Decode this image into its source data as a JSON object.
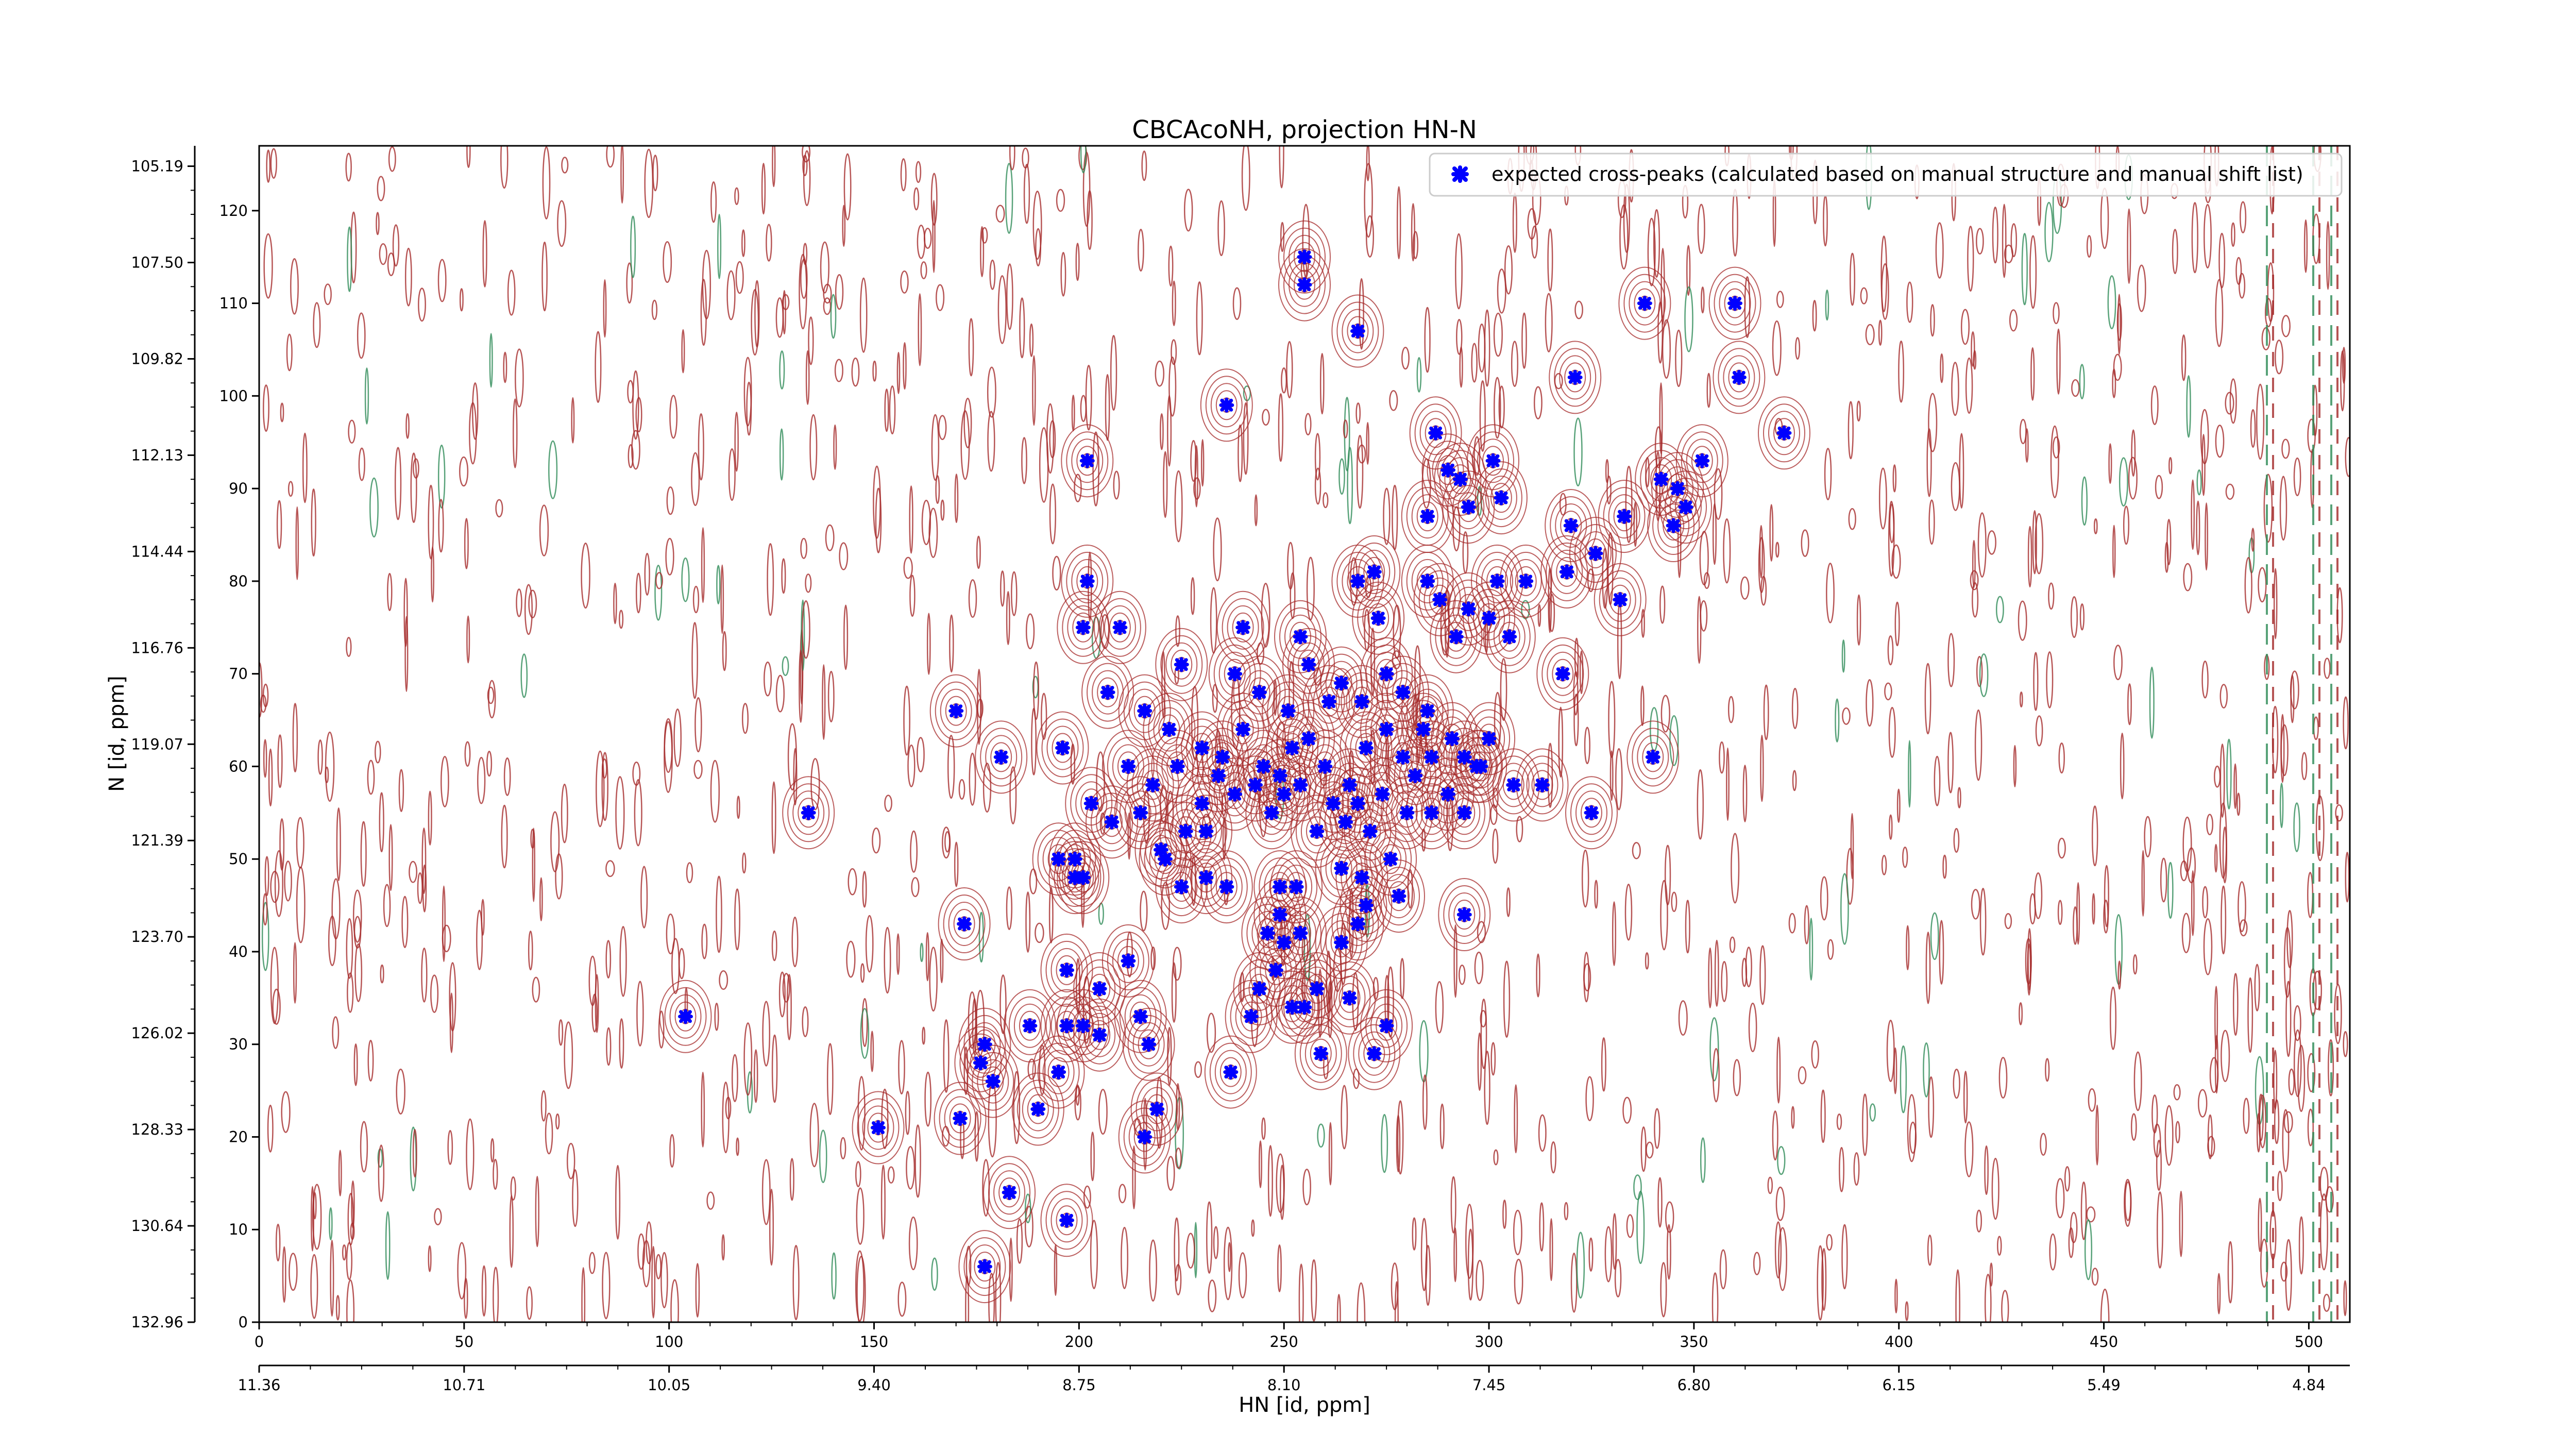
{
  "chart_data": {
    "type": "scatter",
    "title": "CBCAcoNH, projection HN-N",
    "xlabel": "HN [id, ppm]",
    "ylabel": "N [id, ppm]",
    "xlim": [
      0,
      510
    ],
    "ylim": [
      0,
      127
    ],
    "x_ticks": [
      0,
      50,
      100,
      150,
      200,
      250,
      300,
      350,
      400,
      450,
      500
    ],
    "y_ticks": [
      0,
      10,
      20,
      30,
      40,
      50,
      60,
      70,
      80,
      90,
      100,
      110,
      120
    ],
    "x_ppm_ticks": [
      {
        "pos": 0,
        "label": "11.36"
      },
      {
        "pos": 50,
        "label": "10.71"
      },
      {
        "pos": 100,
        "label": "10.05"
      },
      {
        "pos": 150,
        "label": "9.40"
      },
      {
        "pos": 200,
        "label": "8.75"
      },
      {
        "pos": 250,
        "label": "8.10"
      },
      {
        "pos": 300,
        "label": "7.45"
      },
      {
        "pos": 350,
        "label": "6.80"
      },
      {
        "pos": 400,
        "label": "6.15"
      },
      {
        "pos": 450,
        "label": "5.49"
      },
      {
        "pos": 500,
        "label": "4.84"
      }
    ],
    "y_ppm_ticks": [
      {
        "pos": 0,
        "label": "132.96"
      },
      {
        "pos": 10.4,
        "label": "130.64"
      },
      {
        "pos": 20.8,
        "label": "128.33"
      },
      {
        "pos": 31.2,
        "label": "126.02"
      },
      {
        "pos": 41.6,
        "label": "123.70"
      },
      {
        "pos": 52,
        "label": "121.39"
      },
      {
        "pos": 62.4,
        "label": "119.07"
      },
      {
        "pos": 72.8,
        "label": "116.76"
      },
      {
        "pos": 83.2,
        "label": "114.44"
      },
      {
        "pos": 93.6,
        "label": "112.13"
      },
      {
        "pos": 104,
        "label": "109.82"
      },
      {
        "pos": 114.4,
        "label": "107.50"
      },
      {
        "pos": 124.8,
        "label": "105.19"
      }
    ],
    "legend": {
      "position": "top-right"
    },
    "series": [
      {
        "name": "expected cross-peaks (calculated based on manual structure and manual shift list)",
        "color": "#0000ff",
        "marker": "x",
        "points": [
          [
            255,
            115
          ],
          [
            255,
            112
          ],
          [
            268,
            107
          ],
          [
            321,
            102
          ],
          [
            338,
            110
          ],
          [
            360,
            110
          ],
          [
            361,
            102
          ],
          [
            372,
            96
          ],
          [
            236,
            99
          ],
          [
            202,
            93
          ],
          [
            287,
            96
          ],
          [
            290,
            92
          ],
          [
            293,
            91
          ],
          [
            301,
            93
          ],
          [
            303,
            89
          ],
          [
            285,
            87
          ],
          [
            295,
            88
          ],
          [
            320,
            86
          ],
          [
            326,
            83
          ],
          [
            333,
            87
          ],
          [
            342,
            91
          ],
          [
            346,
            90
          ],
          [
            352,
            93
          ],
          [
            345,
            86
          ],
          [
            348,
            88
          ],
          [
            202,
            80
          ],
          [
            201,
            75
          ],
          [
            210,
            75
          ],
          [
            207,
            68
          ],
          [
            170,
            66
          ],
          [
            181,
            61
          ],
          [
            196,
            62
          ],
          [
            240,
            75
          ],
          [
            254,
            74
          ],
          [
            268,
            80
          ],
          [
            272,
            81
          ],
          [
            273,
            76
          ],
          [
            285,
            80
          ],
          [
            288,
            78
          ],
          [
            302,
            80
          ],
          [
            309,
            80
          ],
          [
            295,
            77
          ],
          [
            300,
            76
          ],
          [
            292,
            74
          ],
          [
            305,
            74
          ],
          [
            319,
            81
          ],
          [
            332,
            78
          ],
          [
            318,
            70
          ],
          [
            225,
            71
          ],
          [
            238,
            70
          ],
          [
            244,
            68
          ],
          [
            251,
            66
          ],
          [
            256,
            71
          ],
          [
            264,
            69
          ],
          [
            261,
            67
          ],
          [
            275,
            70
          ],
          [
            269,
            67
          ],
          [
            279,
            68
          ],
          [
            285,
            66
          ],
          [
            284,
            64
          ],
          [
            291,
            63
          ],
          [
            286,
            61
          ],
          [
            294,
            61
          ],
          [
            297,
            60
          ],
          [
            300,
            63
          ],
          [
            290,
            57
          ],
          [
            298,
            60
          ],
          [
            306,
            58
          ],
          [
            313,
            58
          ],
          [
            325,
            55
          ],
          [
            340,
            61
          ],
          [
            216,
            66
          ],
          [
            222,
            64
          ],
          [
            230,
            62
          ],
          [
            235,
            61
          ],
          [
            240,
            64
          ],
          [
            245,
            60
          ],
          [
            249,
            59
          ],
          [
            252,
            62
          ],
          [
            256,
            63
          ],
          [
            260,
            60
          ],
          [
            266,
            58
          ],
          [
            270,
            62
          ],
          [
            275,
            64
          ],
          [
            279,
            61
          ],
          [
            282,
            59
          ],
          [
            212,
            60
          ],
          [
            218,
            58
          ],
          [
            224,
            60
          ],
          [
            230,
            56
          ],
          [
            234,
            59
          ],
          [
            238,
            57
          ],
          [
            243,
            58
          ],
          [
            247,
            55
          ],
          [
            250,
            57
          ],
          [
            254,
            58
          ],
          [
            258,
            53
          ],
          [
            262,
            56
          ],
          [
            265,
            54
          ],
          [
            268,
            56
          ],
          [
            271,
            53
          ],
          [
            274,
            57
          ],
          [
            280,
            55
          ],
          [
            286,
            55
          ],
          [
            294,
            55
          ],
          [
            203,
            56
          ],
          [
            208,
            54
          ],
          [
            215,
            55
          ],
          [
            220,
            51
          ],
          [
            226,
            53
          ],
          [
            231,
            53
          ],
          [
            134,
            55
          ],
          [
            199,
            50
          ],
          [
            201,
            48
          ],
          [
            199,
            48
          ],
          [
            195,
            50
          ],
          [
            172,
            43
          ],
          [
            221,
            50
          ],
          [
            225,
            47
          ],
          [
            231,
            48
          ],
          [
            236,
            47
          ],
          [
            249,
            47
          ],
          [
            253,
            47
          ],
          [
            264,
            49
          ],
          [
            269,
            48
          ],
          [
            276,
            50
          ],
          [
            270,
            45
          ],
          [
            268,
            43
          ],
          [
            278,
            46
          ],
          [
            294,
            44
          ],
          [
            249,
            44
          ],
          [
            246,
            42
          ],
          [
            250,
            41
          ],
          [
            254,
            42
          ],
          [
            248,
            38
          ],
          [
            264,
            41
          ],
          [
            212,
            39
          ],
          [
            197,
            38
          ],
          [
            205,
            36
          ],
          [
            244,
            36
          ],
          [
            258,
            36
          ],
          [
            188,
            32
          ],
          [
            197,
            32
          ],
          [
            201,
            32
          ],
          [
            205,
            31
          ],
          [
            215,
            33
          ],
          [
            217,
            30
          ],
          [
            242,
            33
          ],
          [
            252,
            34
          ],
          [
            255,
            34
          ],
          [
            266,
            35
          ],
          [
            275,
            32
          ],
          [
            104,
            33
          ],
          [
            177,
            30
          ],
          [
            176,
            28
          ],
          [
            179,
            26
          ],
          [
            190,
            23
          ],
          [
            195,
            27
          ],
          [
            237,
            27
          ],
          [
            259,
            29
          ],
          [
            272,
            29
          ],
          [
            151,
            21
          ],
          [
            171,
            22
          ],
          [
            216,
            20
          ],
          [
            219,
            23
          ],
          [
            183,
            14
          ],
          [
            197,
            11
          ],
          [
            177,
            6
          ]
        ]
      }
    ]
  }
}
